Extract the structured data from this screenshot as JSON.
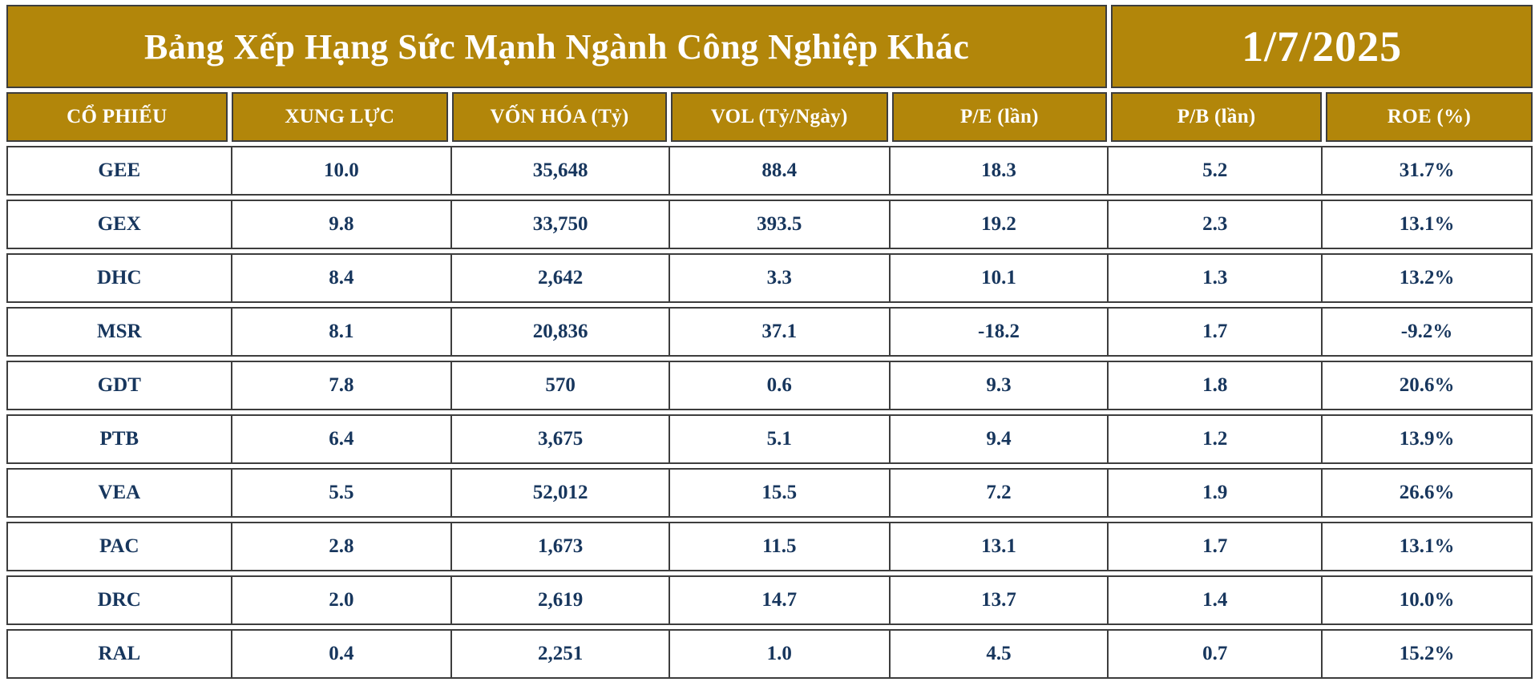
{
  "header": {
    "title": "Bảng Xếp Hạng Sức Mạnh Ngành Công Nghiệp Khác",
    "date": "1/7/2025"
  },
  "colors": {
    "gold": "#B2860A",
    "border": "#3D3D3D",
    "data_text": "#17365D",
    "header_text": "#FFFFFF",
    "row_background": "#FFFFFF"
  },
  "chart_data": {
    "type": "table",
    "title": "Bảng Xếp Hạng Sức Mạnh Ngành Công Nghiệp Khác",
    "date": "1/7/2025",
    "columns": [
      "CỔ PHIẾU",
      "XUNG LỰC",
      "VỐN HÓA (Tỷ)",
      "VOL (Tỷ/Ngày)",
      "P/E (lần)",
      "P/B (lần)",
      "ROE (%)"
    ],
    "rows": [
      [
        "GEE",
        "10.0",
        "35,648",
        "88.4",
        "18.3",
        "5.2",
        "31.7%"
      ],
      [
        "GEX",
        "9.8",
        "33,750",
        "393.5",
        "19.2",
        "2.3",
        "13.1%"
      ],
      [
        "DHC",
        "8.4",
        "2,642",
        "3.3",
        "10.1",
        "1.3",
        "13.2%"
      ],
      [
        "MSR",
        "8.1",
        "20,836",
        "37.1",
        "-18.2",
        "1.7",
        "-9.2%"
      ],
      [
        "GDT",
        "7.8",
        "570",
        "0.6",
        "9.3",
        "1.8",
        "20.6%"
      ],
      [
        "PTB",
        "6.4",
        "3,675",
        "5.1",
        "9.4",
        "1.2",
        "13.9%"
      ],
      [
        "VEA",
        "5.5",
        "52,012",
        "15.5",
        "7.2",
        "1.9",
        "26.6%"
      ],
      [
        "PAC",
        "2.8",
        "1,673",
        "11.5",
        "13.1",
        "1.7",
        "13.1%"
      ],
      [
        "DRC",
        "2.0",
        "2,619",
        "14.7",
        "13.7",
        "1.4",
        "10.0%"
      ],
      [
        "RAL",
        "0.4",
        "2,251",
        "1.0",
        "4.5",
        "0.7",
        "15.2%"
      ]
    ]
  }
}
